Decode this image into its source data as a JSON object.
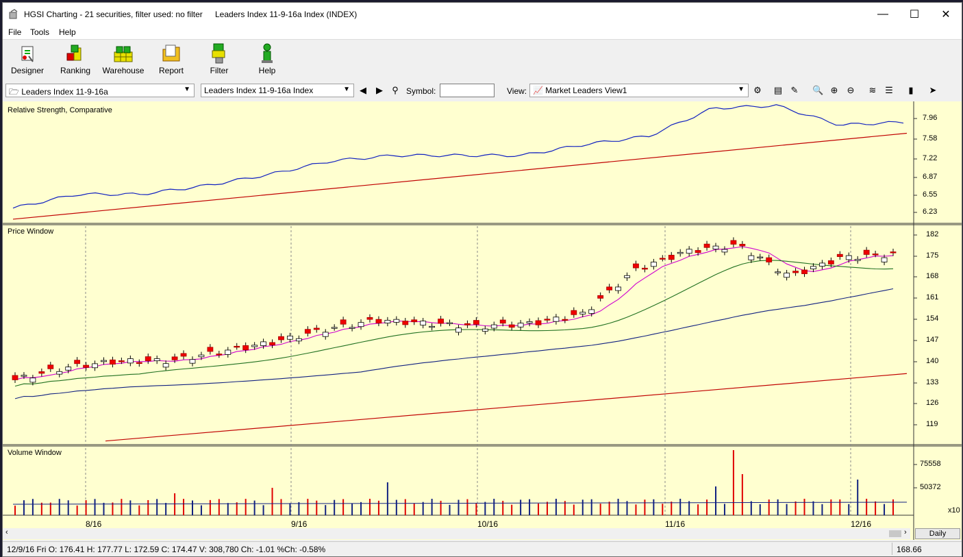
{
  "window": {
    "title": "HGSI Charting - 21 securities, filter used: no filter",
    "subtitle": "Leaders Index 11-9-16a Index (INDEX)",
    "minimize": "—",
    "maximize": "☐",
    "close": "✕"
  },
  "menu": {
    "items": [
      "File",
      "Tools",
      "Help"
    ]
  },
  "toolbar": {
    "buttons": [
      {
        "label": "Designer",
        "icon": "designer-icon"
      },
      {
        "label": "Ranking",
        "icon": "ranking-icon"
      },
      {
        "label": "Warehouse",
        "icon": "warehouse-icon"
      },
      {
        "label": "Report",
        "icon": "report-icon"
      },
      {
        "label": "Filter",
        "icon": "filter-icon"
      },
      {
        "label": "Help",
        "icon": "help-icon"
      }
    ]
  },
  "options": {
    "list_combo": "Leaders Index 11-9-16a",
    "security_combo": "Leaders Index 11-9-16a Index",
    "symbol_label": "Symbol:",
    "symbol_value": "",
    "view_label": "View:",
    "view_combo": "Market Leaders View1"
  },
  "panels": {
    "rs": {
      "title": "Relative Strength, Comparative",
      "ticks": [
        "7.96",
        "7.58",
        "7.22",
        "6.87",
        "6.55",
        "6.23"
      ]
    },
    "price": {
      "title": "Price Window",
      "ticks": [
        "182",
        "175",
        "168",
        "161",
        "154",
        "147",
        "140",
        "133",
        "126",
        "119"
      ]
    },
    "volume": {
      "title": "Volume Window",
      "ticks": [
        "75558",
        "50372"
      ],
      "multiplier": "x10"
    }
  },
  "x_axis": {
    "labels": [
      "8/16",
      "9/16",
      "10/16",
      "11/16",
      "12/16"
    ]
  },
  "chart_data": {
    "type": "line",
    "x_labels": [
      "8/16",
      "9/16",
      "10/16",
      "11/16",
      "12/16"
    ],
    "price_ylim": [
      115,
      184
    ],
    "price_close_approx": [
      135,
      139,
      141,
      141,
      144,
      147,
      151,
      154,
      153,
      152,
      153,
      156,
      170,
      176,
      178,
      168,
      174,
      175
    ],
    "rs_ylim": [
      6.0,
      8.15
    ],
    "rs_blue_approx": [
      6.25,
      6.5,
      6.5,
      6.65,
      6.85,
      7.1,
      7.2,
      7.2,
      7.2,
      7.4,
      7.55,
      8.05,
      8.1,
      7.75,
      7.8
    ],
    "volume_ticks": [
      75558,
      50372
    ],
    "volume_multiplier": "x10"
  },
  "scroll": {
    "timeframe_button": "Daily"
  },
  "status": {
    "text": "12/9/16 Fri O: 176.41 H: 177.77 L: 172.59 C: 174.47 V: 308,780 Ch: -1.01 %Ch: -0.58%",
    "right": "168.66"
  },
  "colors": {
    "chart_bg": "#ffffd0",
    "rs_line": "#1020c0",
    "ma_red": "#c00000",
    "ma_green": "#207020",
    "ma_magenta": "#d000d0",
    "ma_navy": "#102080"
  }
}
